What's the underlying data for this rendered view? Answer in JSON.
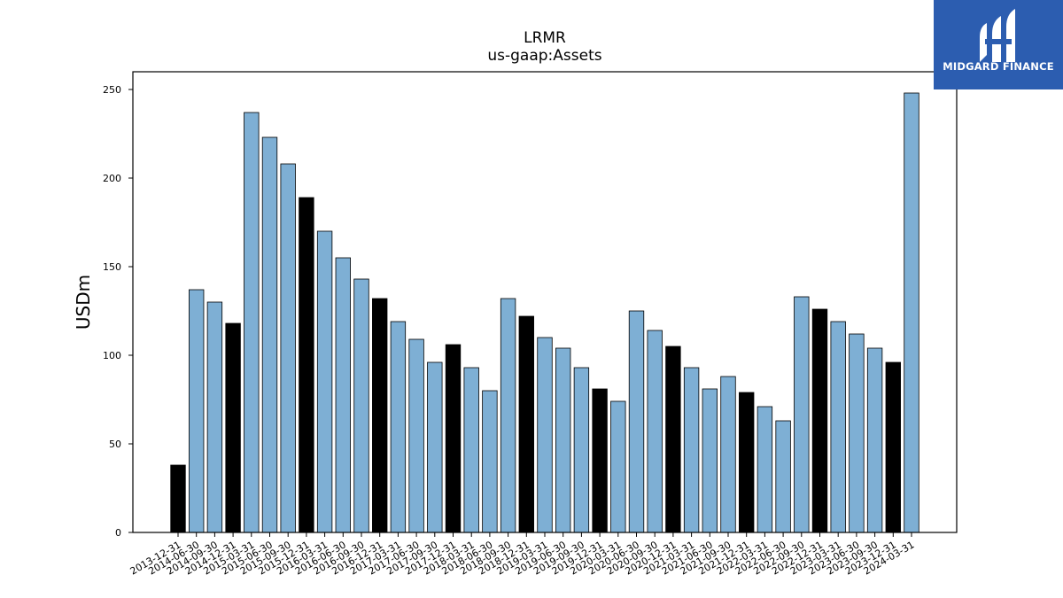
{
  "colors": {
    "accent": "#7eafd4",
    "highlight": "#000000",
    "logo_bg": "#2c5db0"
  },
  "logo": {
    "text": "MIDGARD FINANCE"
  },
  "chart_data": {
    "type": "bar",
    "title": "LRMR",
    "subtitle": "us-gaap:Assets",
    "ylabel": "USDm",
    "xlabel": "",
    "ylim": [
      0,
      260
    ],
    "yticks": [
      0,
      50,
      100,
      150,
      200,
      250
    ],
    "categories": [
      "2013-12-31",
      "2014-06-30",
      "2014-09-30",
      "2014-12-31",
      "2015-03-31",
      "2015-06-30",
      "2015-09-30",
      "2015-12-31",
      "2016-03-31",
      "2016-06-30",
      "2016-09-30",
      "2016-12-31",
      "2017-03-31",
      "2017-06-30",
      "2017-09-30",
      "2017-12-31",
      "2018-03-31",
      "2018-06-30",
      "2018-09-30",
      "2018-12-31",
      "2019-03-31",
      "2019-06-30",
      "2019-09-30",
      "2019-12-31",
      "2020-03-31",
      "2020-06-30",
      "2020-09-30",
      "2020-12-31",
      "2021-03-31",
      "2021-06-30",
      "2021-09-30",
      "2021-12-31",
      "2022-03-31",
      "2022-06-30",
      "2022-09-30",
      "2022-12-31",
      "2023-03-31",
      "2023-06-30",
      "2023-09-30",
      "2023-12-31",
      "2024-03-31"
    ],
    "values": [
      38,
      137,
      130,
      118,
      237,
      223,
      208,
      189,
      170,
      155,
      143,
      132,
      119,
      109,
      96,
      106,
      93,
      80,
      132,
      122,
      110,
      104,
      93,
      81,
      74,
      125,
      114,
      105,
      93,
      81,
      88,
      79,
      71,
      63,
      133,
      126,
      119,
      112,
      104,
      96,
      248
    ],
    "highlight_indices": [
      0,
      3,
      7,
      11,
      15,
      19,
      23,
      27,
      31,
      35,
      39
    ],
    "grid": false,
    "legend": "none"
  }
}
